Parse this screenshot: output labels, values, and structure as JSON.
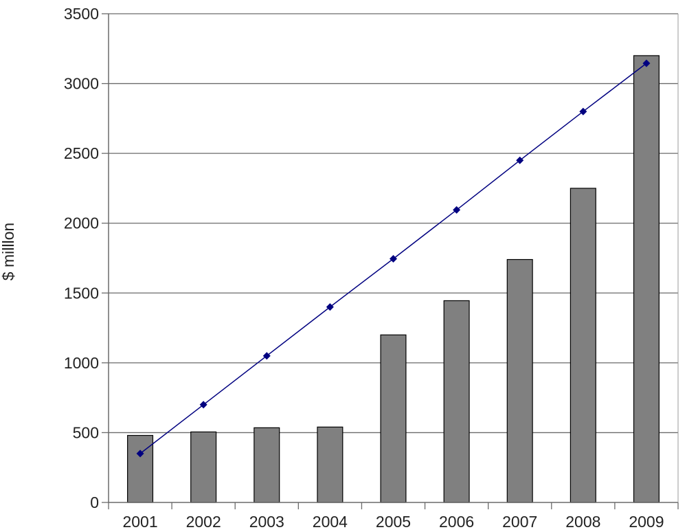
{
  "chart_data": {
    "type": "bar",
    "title": "",
    "xlabel": "",
    "ylabel": "$ milllon",
    "categories": [
      "2001",
      "2002",
      "2003",
      "2004",
      "2005",
      "2006",
      "2007",
      "2008",
      "2009"
    ],
    "series": [
      {
        "type": "bar",
        "values": [
          480,
          505,
          535,
          540,
          1200,
          1445,
          1740,
          2250,
          3200
        ],
        "color": "#808080"
      },
      {
        "type": "line",
        "values": [
          350,
          700,
          1050,
          1400,
          1745,
          2095,
          2450,
          2800,
          3145
        ],
        "color": "#000080"
      }
    ],
    "ylim": [
      0,
      3500
    ],
    "yticks": [
      "0",
      "500",
      "1000",
      "1500",
      "2000",
      "2500",
      "3000",
      "3500"
    ],
    "grid": true,
    "legend": "none"
  }
}
